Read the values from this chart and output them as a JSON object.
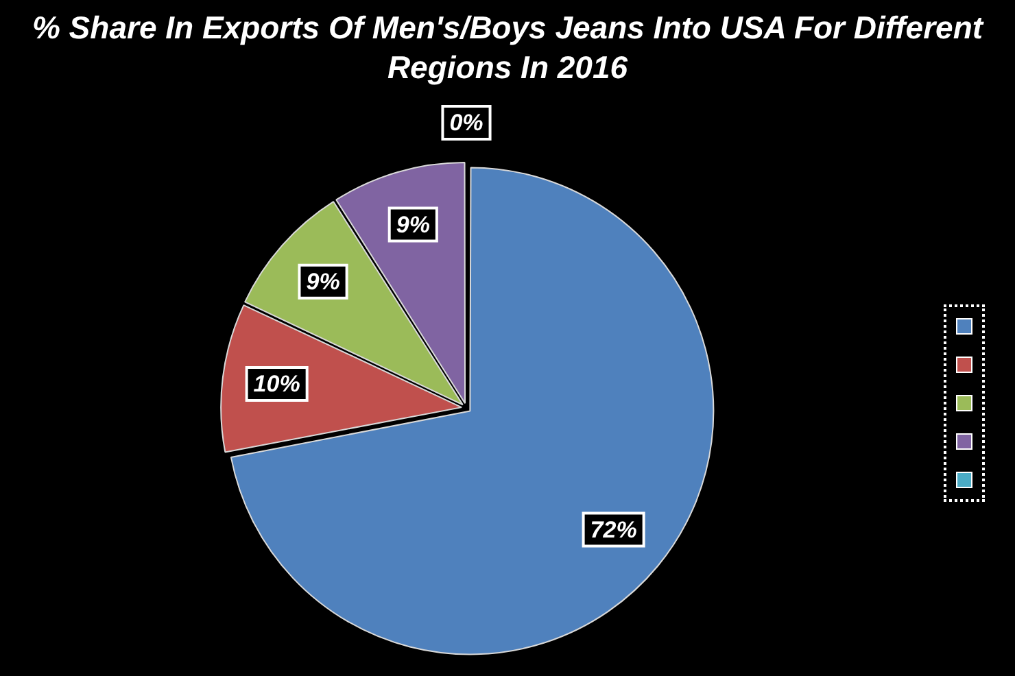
{
  "chart_data": {
    "type": "pie",
    "title": "% Share In Exports Of Men's/Boys Jeans Into USA For Different Regions In 2016",
    "categories": [
      null,
      null,
      null,
      null,
      null
    ],
    "values": [
      72,
      10,
      9,
      9,
      0
    ],
    "colors": [
      "#4f81bd",
      "#c0504d",
      "#9bbb59",
      "#8064a2",
      "#4bacc6"
    ],
    "value_labels": [
      "72%",
      "10%",
      "9%",
      "9%",
      "0%"
    ]
  }
}
